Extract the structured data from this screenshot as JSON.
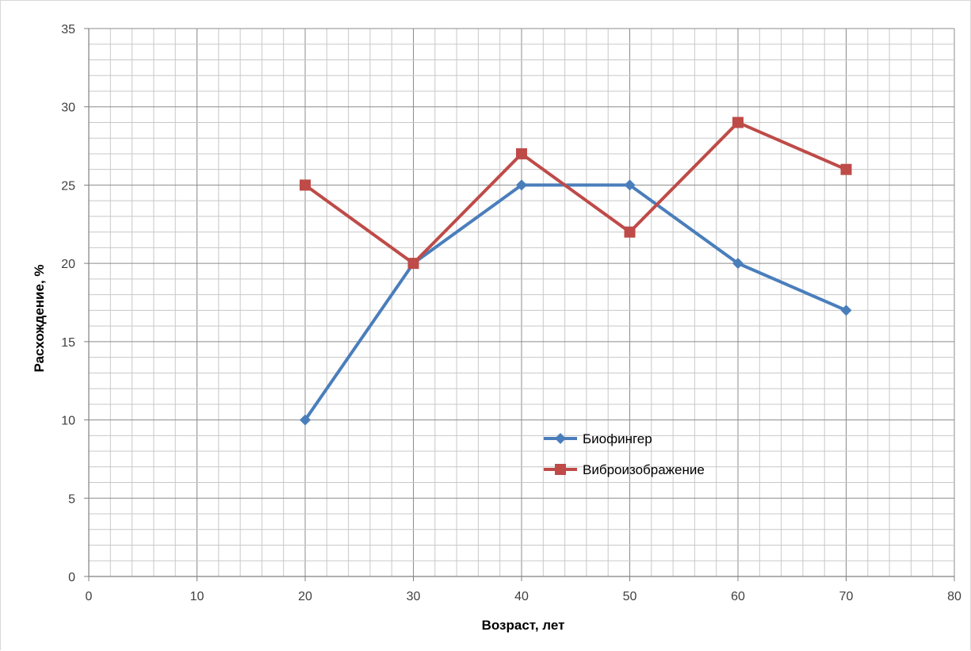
{
  "chart_data": {
    "type": "line",
    "title": "",
    "xlabel": "Возраст, лет",
    "ylabel": "Расхождение, %",
    "xlim": [
      0,
      80
    ],
    "ylim": [
      0,
      35
    ],
    "x_ticks": [
      "0",
      "10",
      "20",
      "30",
      "40",
      "50",
      "60",
      "70",
      "80"
    ],
    "y_ticks": [
      "0",
      "5",
      "10",
      "15",
      "20",
      "25",
      "30",
      "35"
    ],
    "grid": "major and minor",
    "legend_position": "center-right inside plot",
    "series": [
      {
        "name": "Биофингер",
        "color": "#4a7ebb",
        "marker": "diamond",
        "x": [
          20,
          30,
          40,
          50,
          60,
          70
        ],
        "y": [
          10,
          20,
          25,
          25,
          20,
          17
        ]
      },
      {
        "name": "Виброизображение",
        "color": "#be4b48",
        "marker": "square",
        "x": [
          20,
          30,
          40,
          50,
          60,
          70
        ],
        "y": [
          25,
          20,
          27,
          22,
          29,
          26
        ]
      }
    ]
  }
}
